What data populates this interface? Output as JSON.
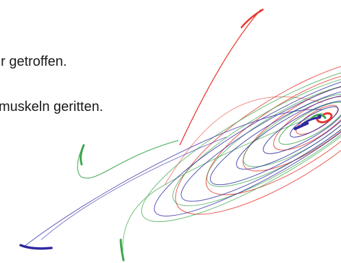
{
  "text": {
    "line1": "hr getroffen.",
    "line2": "muskeln geritten."
  },
  "colors": {
    "red": "#e8372d",
    "green": "#3aa64a",
    "blue": "#2e2aa0",
    "text": "#1a1a1a"
  }
}
